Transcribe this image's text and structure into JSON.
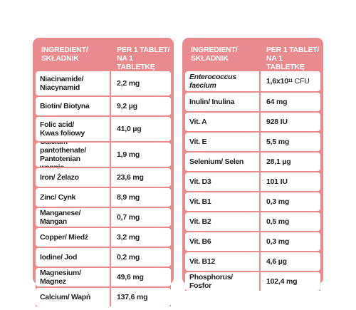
{
  "colors": {
    "accent": "#e98a8e",
    "text": "#222222"
  },
  "left_table": {
    "header": {
      "col1": "INGREDIENT/\nSKŁADNIK",
      "col2": "PER 1 TABLET/\nNA 1 TABLETKĘ"
    },
    "rows": [
      {
        "name": "Niacinamide/\nNiacynamid",
        "value": "2,2 mg"
      },
      {
        "name": "Biotin/ Biotyna",
        "value": "9,2 µg"
      },
      {
        "name": "Folic acid/\nKwas foliowy",
        "value": "41,0 µg"
      },
      {
        "name": "Calcium pantothenate/\nPantotenian wapnia",
        "value": "1,9 mg"
      },
      {
        "name": "Iron/ Żelazo",
        "value": "23,6 mg"
      },
      {
        "name": "Zinc/ Cynk",
        "value": "8,9 mg"
      },
      {
        "name": "Manganese/ Mangan",
        "value": "0,7 mg"
      },
      {
        "name": "Copper/ Miedź",
        "value": "3,2 mg"
      },
      {
        "name": "Iodine/ Jod",
        "value": "0,2 mg"
      },
      {
        "name": "Magnesium/ Magnez",
        "value": "49,6 mg"
      },
      {
        "name": "Calcium/ Wapń",
        "value": "137,6 mg"
      }
    ]
  },
  "right_table": {
    "header": {
      "col1": "INGREDIENT/\nSKŁADNIK",
      "col2": "PER 1 TABLET/\nNA 1 TABLETKĘ"
    },
    "first_row": {
      "name": "Enterococcus faecium",
      "value_base": "1,6x10",
      "value_exp": "11",
      "value_unit": " CFU"
    },
    "rows": [
      {
        "name": "Inulin/ Inulina",
        "value": "64 mg"
      },
      {
        "name": "Vit. A",
        "value": "928 IU"
      },
      {
        "name": "Vit. E",
        "value": "5,5 mg"
      },
      {
        "name": "Selenium/ Selen",
        "value": "28,1 µg"
      },
      {
        "name": "Vit. D3",
        "value": "101 IU"
      },
      {
        "name": "Vit. B1",
        "value": "0,3 mg"
      },
      {
        "name": "Vit. B2",
        "value": "0,5 mg"
      },
      {
        "name": "Vit. B6",
        "value": "0,3 mg"
      },
      {
        "name": "Vit. B12",
        "value": "4,6 µg"
      },
      {
        "name": "Phosphorus/ Fosfor",
        "value": "102,4 mg"
      }
    ]
  }
}
